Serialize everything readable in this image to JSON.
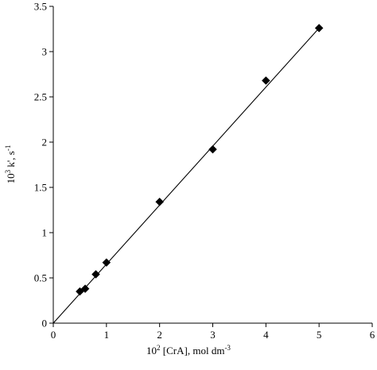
{
  "chart_data": {
    "type": "scatter",
    "title": "",
    "xlabel": {
      "base": "10",
      "exp": "2",
      "rest": " [CrA], mol dm",
      "unit_exp": "-3"
    },
    "ylabel": {
      "base": "10",
      "exp": "3",
      "rest": " k', s",
      "unit_exp": "-1"
    },
    "xlim": [
      0,
      6
    ],
    "ylim": [
      0,
      3.5
    ],
    "xticks": [
      0,
      1,
      2,
      3,
      4,
      5,
      6
    ],
    "yticks": [
      0,
      0.5,
      1,
      1.5,
      2,
      2.5,
      3,
      3.5
    ],
    "grid": false,
    "legend": "none",
    "marker": "diamond",
    "series": [
      {
        "x": [
          0.5,
          0.6,
          0.8,
          1.0,
          2.0,
          3.0,
          4.0,
          5.0
        ],
        "y": [
          0.35,
          0.38,
          0.54,
          0.67,
          1.34,
          1.92,
          2.68,
          3.26
        ]
      }
    ],
    "fit_line": {
      "x": [
        0,
        5
      ],
      "y": [
        0,
        3.26
      ]
    },
    "colors": {
      "marker": "#000000",
      "line": "#000000",
      "axis": "#000000"
    }
  }
}
